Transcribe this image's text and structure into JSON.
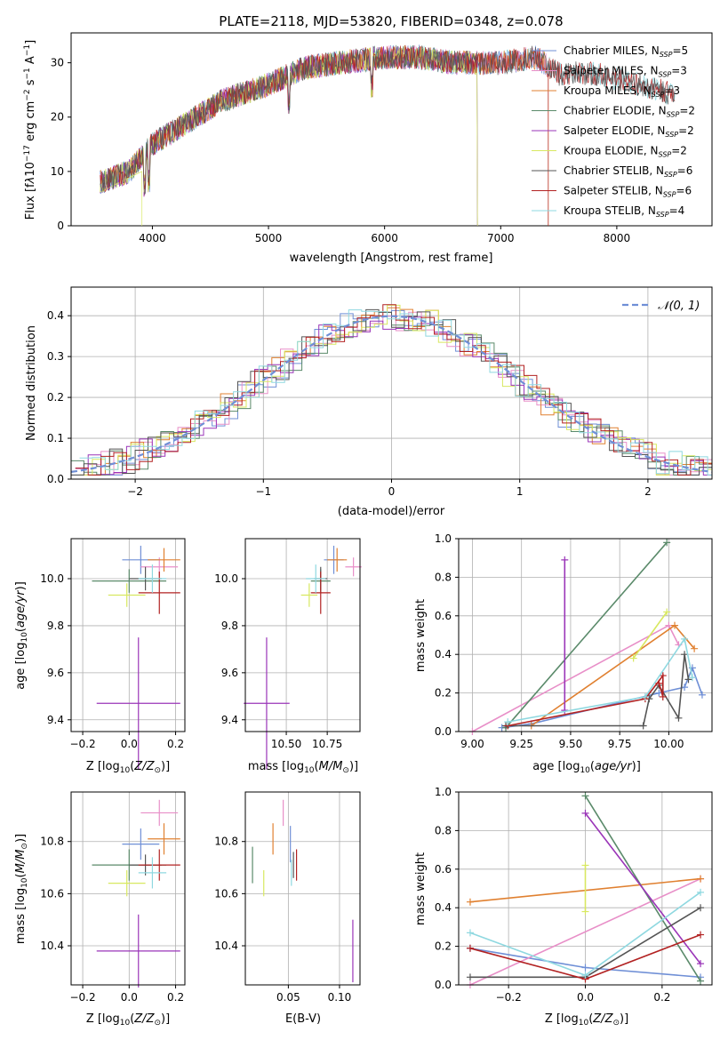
{
  "title": "PLATE=2118, MJD=53820, FIBERID=0348, z=0.078",
  "colors": {
    "chabrier_miles": "#6f8fd6",
    "salpeter_miles": "#e88fc8",
    "kroupa_miles": "#e08030",
    "chabrier_elodie": "#5a8a6a",
    "salpeter_elodie": "#9a35b8",
    "kroupa_elodie": "#d8e860",
    "chabrier_stelib": "#555555",
    "salpeter_stelib": "#b22222",
    "kroupa_stelib": "#8fd8e0",
    "gaussian": "#6f8fd6",
    "grid": "#b0b0b0"
  },
  "models": [
    {
      "key": "chabrier_miles",
      "label": "Chabrier MILES, N",
      "nssp": "=5",
      "Z": 0.05,
      "Zerr": 0.08,
      "age": 10.08,
      "ageerr": 0.06,
      "mass": 10.79,
      "masserr": 0.06,
      "ebv": 0.052,
      "ebverr_m": 0.07,
      "weights_age": [
        [
          9.15,
          0.02
        ],
        [
          9.3,
          0.04
        ],
        [
          9.95,
          0.2
        ],
        [
          10.08,
          0.23
        ],
        [
          10.12,
          0.33
        ],
        [
          10.17,
          0.19
        ]
      ],
      "weights_Z": [
        [
          -0.3,
          0.19
        ],
        [
          0.0,
          0.09
        ],
        [
          0.3,
          0.04
        ]
      ]
    },
    {
      "key": "salpeter_miles",
      "label": "Salpeter MILES, N",
      "nssp": "=3",
      "Z": 0.13,
      "Zerr": 0.08,
      "age": 10.05,
      "ageerr": 0.04,
      "mass": 10.91,
      "masserr": 0.05,
      "ebv": 0.045,
      "ebverr_m": 0.05,
      "weights_age": [
        [
          9.0,
          0.0
        ],
        [
          10.0,
          0.55
        ],
        [
          10.05,
          0.45
        ]
      ],
      "weights_Z": [
        [
          -0.3,
          0.0
        ],
        [
          0.3,
          0.55
        ]
      ]
    },
    {
      "key": "kroupa_miles",
      "label": "Kroupa MILES, N",
      "nssp": "=3",
      "Z": 0.15,
      "Zerr": 0.07,
      "age": 10.08,
      "ageerr": 0.05,
      "mass": 10.81,
      "masserr": 0.06,
      "ebv": 0.035,
      "ebverr_m": 0.06,
      "weights_age": [
        [
          9.3,
          0.03
        ],
        [
          10.03,
          0.55
        ],
        [
          10.13,
          0.43
        ]
      ],
      "weights_Z": [
        [
          -0.3,
          0.43
        ],
        [
          0.3,
          0.55
        ]
      ]
    },
    {
      "key": "chabrier_elodie",
      "label": "Chabrier ELODIE, N",
      "nssp": "=2",
      "Z": 0.0,
      "Zerr": 0.16,
      "age": 9.99,
      "ageerr": 0.05,
      "mass": 10.71,
      "masserr": 0.06,
      "ebv": 0.015,
      "ebverr_m": 0.07,
      "weights_age": [
        [
          9.17,
          0.02
        ],
        [
          9.99,
          0.98
        ]
      ],
      "weights_Z": [
        [
          0.0,
          0.98
        ],
        [
          0.3,
          0.02
        ]
      ]
    },
    {
      "key": "salpeter_elodie",
      "label": "Salpeter ELODIE, N",
      "nssp": "=2",
      "Z": 0.04,
      "Zerr": 0.18,
      "age": 9.47,
      "ageerr": 0.28,
      "mass": 10.38,
      "masserr": 0.14,
      "ebv": 0.113,
      "ebverr_m": 0.12,
      "weights_age": [
        [
          9.47,
          0.89
        ],
        [
          9.47,
          0.11
        ]
      ],
      "weights_Z": [
        [
          0.0,
          0.89
        ],
        [
          0.3,
          0.11
        ]
      ]
    },
    {
      "key": "kroupa_elodie",
      "label": "Kroupa ELODIE, N",
      "nssp": "=2",
      "Z": -0.01,
      "Zerr": 0.08,
      "age": 9.93,
      "ageerr": 0.05,
      "mass": 10.64,
      "masserr": 0.05,
      "ebv": 0.026,
      "ebverr_m": 0.05,
      "weights_age": [
        [
          9.82,
          0.38
        ],
        [
          9.99,
          0.62
        ]
      ],
      "weights_Z": [
        [
          0.0,
          0.62
        ],
        [
          0.0,
          0.38
        ]
      ]
    },
    {
      "key": "chabrier_stelib",
      "label": "Chabrier STELIB, N",
      "nssp": "=6",
      "Z": 0.07,
      "Zerr": 0.07,
      "age": 10.0,
      "ageerr": 0.05,
      "mass": 10.71,
      "masserr": 0.04,
      "ebv": 0.055,
      "ebverr_m": 0.05,
      "weights_age": [
        [
          9.17,
          0.03
        ],
        [
          9.87,
          0.03
        ],
        [
          9.9,
          0.17
        ],
        [
          9.95,
          0.24
        ],
        [
          10.05,
          0.07
        ],
        [
          10.08,
          0.4
        ],
        [
          10.1,
          0.27
        ]
      ],
      "weights_Z": [
        [
          -0.3,
          0.04
        ],
        [
          0.0,
          0.04
        ],
        [
          0.3,
          0.4
        ]
      ]
    },
    {
      "key": "salpeter_stelib",
      "label": "Salpeter STELIB, N",
      "nssp": "=6",
      "Z": 0.13,
      "Zerr": 0.09,
      "age": 9.94,
      "ageerr": 0.09,
      "mass": 10.71,
      "masserr": 0.06,
      "ebv": 0.058,
      "ebverr_m": 0.06,
      "weights_age": [
        [
          9.18,
          0.03
        ],
        [
          9.88,
          0.17
        ],
        [
          9.97,
          0.29
        ],
        [
          9.97,
          0.18
        ],
        [
          9.95,
          0.25
        ]
      ],
      "weights_Z": [
        [
          -0.3,
          0.19
        ],
        [
          0.0,
          0.03
        ],
        [
          0.3,
          0.26
        ]
      ]
    },
    {
      "key": "kroupa_stelib",
      "label": "Kroupa STELIB, N",
      "nssp": "=4",
      "Z": 0.1,
      "Zerr": 0.06,
      "age": 10.0,
      "ageerr": 0.06,
      "mass": 10.68,
      "masserr": 0.06,
      "ebv": 0.053,
      "ebverr_m": 0.05,
      "weights_age": [
        [
          9.18,
          0.05
        ],
        [
          9.88,
          0.18
        ],
        [
          10.08,
          0.48
        ],
        [
          10.12,
          0.28
        ]
      ],
      "weights_Z": [
        [
          -0.3,
          0.27
        ],
        [
          0.0,
          0.05
        ],
        [
          0.3,
          0.48
        ]
      ]
    }
  ],
  "sub_ssp": "SSP",
  "spectrum": {
    "xlabel": "wavelength [Angstrom, rest frame]",
    "ylabel_html": "Flux [f",
    "xticks": [
      "4000",
      "5000",
      "6000",
      "7000",
      "8000"
    ],
    "yticks": [
      "0",
      "10",
      "20",
      "30"
    ],
    "xlim": [
      3300,
      8820
    ],
    "ylim": [
      0,
      35.5
    ]
  },
  "residuals": {
    "xlabel": "(data-model)/error",
    "ylabel": "Normed distribution",
    "xticks": [
      "−2",
      "−1",
      "0",
      "1",
      "2"
    ],
    "yticks": [
      "0.0",
      "0.1",
      "0.2",
      "0.3",
      "0.4"
    ],
    "legend": "𝒩(0, 1)",
    "xlim": [
      -2.5,
      2.5
    ],
    "ylim": [
      0,
      0.47
    ]
  },
  "panels": {
    "p1": {
      "xlabel": "Z [log",
      "ylabel": "age  [log",
      "xticks": [
        "−0.2",
        "0.0",
        "0.2"
      ],
      "yticks": [
        "9.4",
        "9.6",
        "9.8",
        "10.0"
      ]
    },
    "p2": {
      "xlabel": "mass [log",
      "xticks": [
        "10.50",
        "10.75"
      ],
      "yticks": [
        "9.4",
        "9.6",
        "9.8",
        "10.0"
      ]
    },
    "p3": {
      "xlabel": "age  [log",
      "ylabel": "mass weight",
      "xticks": [
        "9.00",
        "9.25",
        "9.50",
        "9.75",
        "10.00"
      ],
      "yticks": [
        "0.0",
        "0.2",
        "0.4",
        "0.6",
        "0.8",
        "1.0"
      ]
    },
    "p4": {
      "xlabel": "Z [log",
      "ylabel": "mass [log",
      "xticks": [
        "−0.2",
        "0.0",
        "0.2"
      ],
      "yticks": [
        "10.4",
        "10.6",
        "10.8"
      ]
    },
    "p5": {
      "xlabel": "E(B-V)",
      "xticks": [
        "0.05",
        "0.10"
      ],
      "yticks": [
        "10.4",
        "10.6",
        "10.8"
      ]
    },
    "p6": {
      "xlabel": "Z [log",
      "ylabel": "mass weight",
      "xticks": [
        "−0.2",
        "0.0",
        "0.2"
      ],
      "yticks": [
        "0.0",
        "0.2",
        "0.4",
        "0.6",
        "0.8",
        "1.0"
      ]
    }
  },
  "chart_data": [
    {
      "type": "line",
      "title": "PLATE=2118, MJD=53820, FIBERID=0348, z=0.078",
      "xlabel": "wavelength [Angstrom, rest frame]",
      "ylabel": "Flux",
      "xlim": [
        3300,
        8820
      ],
      "ylim": [
        0,
        35.5
      ],
      "series": [
        {
          "name": "Chabrier MILES, N_SSP=5"
        },
        {
          "name": "Salpeter MILES, N_SSP=3"
        },
        {
          "name": "Kroupa MILES, N_SSP=3"
        },
        {
          "name": "Chabrier ELODIE, N_SSP=2"
        },
        {
          "name": "Salpeter ELODIE, N_SSP=2"
        },
        {
          "name": "Kroupa ELODIE, N_SSP=2"
        },
        {
          "name": "Chabrier STELIB, N_SSP=6"
        },
        {
          "name": "Salpeter STELIB, N_SSP=6"
        },
        {
          "name": "Kroupa STELIB, N_SSP=4"
        }
      ],
      "approx_continuum": {
        "x": [
          3550,
          3800,
          4000,
          4300,
          4600,
          5000,
          5300,
          5600,
          6000,
          6300,
          6600,
          7000,
          7300,
          7500,
          7800,
          8200,
          8500
        ],
        "y": [
          8,
          10,
          15,
          19,
          23,
          26,
          29,
          30,
          31,
          31,
          30,
          30,
          31,
          28,
          28,
          26,
          24
        ]
      },
      "legend": "top-right"
    },
    {
      "type": "step",
      "xlabel": "(data-model)/error",
      "ylabel": "Normed distribution",
      "xlim": [
        -2.5,
        2.5
      ],
      "ylim": [
        0,
        0.47
      ],
      "legend": "𝒩(0, 1)",
      "gaussian": {
        "mu": 0,
        "sigma": 1
      }
    },
    {
      "type": "scatter",
      "xlabel": "Z",
      "ylabel": "age",
      "xlim": [
        -0.25,
        0.24
      ],
      "ylim": [
        9.35,
        10.17
      ]
    },
    {
      "type": "scatter",
      "xlabel": "mass",
      "ylabel": "age",
      "xlim": [
        10.25,
        10.95
      ],
      "ylim": [
        9.35,
        10.17
      ]
    },
    {
      "type": "line",
      "xlabel": "age",
      "ylabel": "mass weight",
      "xlim": [
        8.93,
        10.22
      ],
      "ylim": [
        0,
        1
      ]
    },
    {
      "type": "scatter",
      "xlabel": "Z",
      "ylabel": "mass",
      "xlim": [
        -0.25,
        0.24
      ],
      "ylim": [
        10.25,
        10.99
      ]
    },
    {
      "type": "scatter",
      "xlabel": "E(B-V)",
      "ylabel": "mass",
      "xlim": [
        0.008,
        0.12
      ],
      "ylim": [
        10.25,
        10.99
      ]
    },
    {
      "type": "line",
      "xlabel": "Z",
      "ylabel": "mass weight",
      "xlim": [
        -0.33,
        0.33
      ],
      "ylim": [
        0,
        1
      ]
    }
  ]
}
